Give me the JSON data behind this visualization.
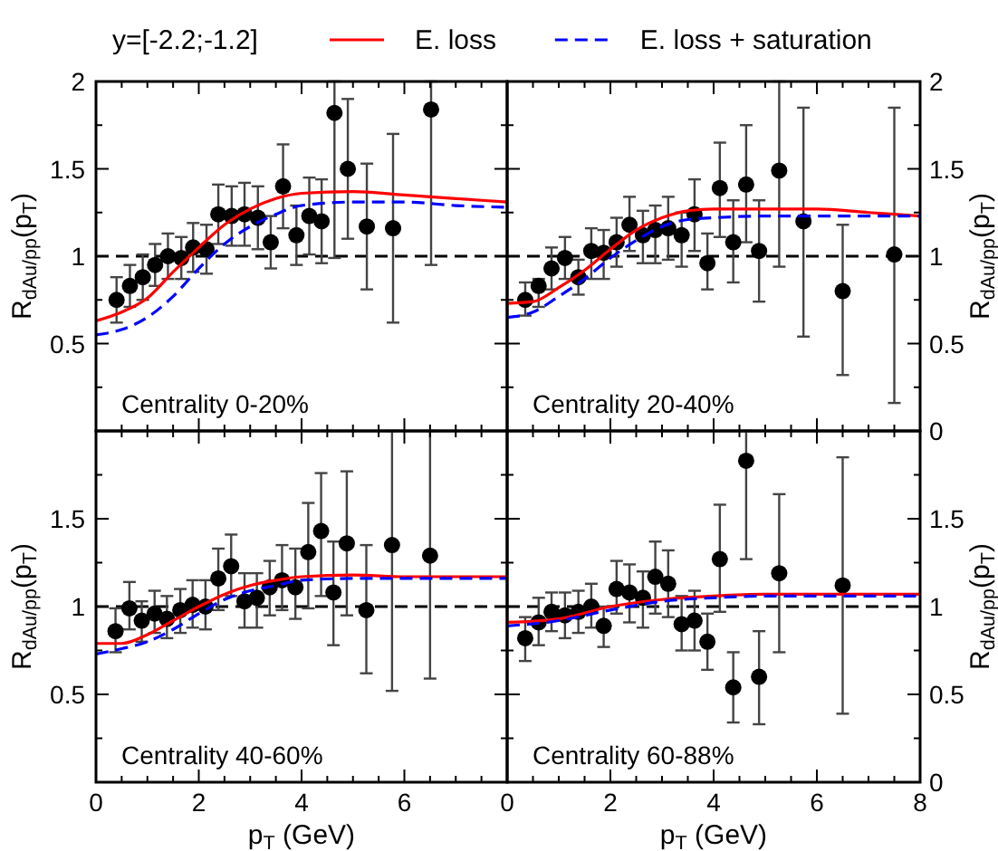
{
  "chart_data": [
    {
      "type": "scatter",
      "legend": "top",
      "legend_title": "y=[-2.2;-1.2]",
      "ylabel": "R$_{dAu/pp}$(p$_{T}$)",
      "tick_labels": "y",
      "xlim": [
        0,
        8
      ],
      "xticks": [
        0,
        2,
        4,
        6,
        8
      ],
      "ylim": [
        0,
        2
      ],
      "yticks": [
        0.5,
        1,
        1.5,
        2
      ],
      "annotations": [
        "Centrality 0-20%"
      ],
      "ref_lines": [
        {
          "axis": "y",
          "value": 1,
          "label": null,
          "color": "#000000",
          "line_style": "dashed"
        }
      ],
      "series": [
        {
          "type": "scatter",
          "color": "#000000",
          "marker": "circle",
          "x": [
            0.4,
            0.66,
            0.91,
            1.15,
            1.4,
            1.66,
            1.89,
            2.15,
            2.38,
            2.64,
            2.89,
            3.15,
            3.4,
            3.64,
            3.9,
            4.15,
            4.39,
            4.64,
            4.9,
            5.27,
            5.78,
            6.52
          ],
          "values": [
            0.75,
            0.83,
            0.88,
            0.95,
            1.0,
            0.99,
            1.05,
            1.04,
            1.24,
            1.23,
            1.24,
            1.22,
            1.08,
            1.4,
            1.12,
            1.23,
            1.2,
            1.82,
            1.5,
            1.17,
            1.16,
            1.84
          ],
          "errors": [
            [
              0.62,
              0.88
            ],
            [
              0.71,
              0.95
            ],
            [
              0.75,
              1.01
            ],
            [
              0.83,
              1.07
            ],
            [
              0.87,
              1.13
            ],
            [
              0.87,
              1.11
            ],
            [
              0.91,
              1.19
            ],
            [
              0.9,
              1.18
            ],
            [
              1.07,
              1.41
            ],
            [
              1.06,
              1.4
            ],
            [
              1.06,
              1.42
            ],
            [
              1.04,
              1.4
            ],
            [
              0.93,
              1.23
            ],
            [
              1.16,
              1.64
            ],
            [
              0.95,
              1.29
            ],
            [
              1.01,
              1.45
            ],
            [
              0.96,
              1.44
            ],
            [
              0.99,
              2
            ],
            [
              1.1,
              1.9
            ],
            [
              0.81,
              1.53
            ],
            [
              0.62,
              1.7
            ],
            [
              0.95,
              2
            ]
          ]
        },
        {
          "type": "line",
          "name": "E. loss",
          "color": "#ff0000",
          "line_style": "solid",
          "x": [
            0,
            0.5,
            1,
            1.5,
            2,
            2.5,
            3,
            3.5,
            4,
            5,
            6,
            7,
            8
          ],
          "values": [
            0.63,
            0.68,
            0.76,
            0.91,
            1.05,
            1.18,
            1.27,
            1.33,
            1.36,
            1.37,
            1.35,
            1.33,
            1.31
          ]
        },
        {
          "type": "line",
          "name": "E. loss + saturation",
          "color": "#0000ff",
          "line_style": "dashed",
          "x": [
            0,
            0.5,
            1,
            1.5,
            2,
            2.5,
            3,
            3.5,
            4,
            5,
            6,
            7,
            8
          ],
          "values": [
            0.55,
            0.58,
            0.65,
            0.77,
            0.93,
            1.07,
            1.17,
            1.24,
            1.29,
            1.31,
            1.31,
            1.29,
            1.28
          ]
        }
      ]
    },
    {
      "type": "scatter",
      "y2label": "R$_{dAu/pp}$(p$_{T}$)",
      "tick_labels": "y",
      "xlim": [
        0,
        8
      ],
      "xticks": [
        0,
        2,
        4,
        6,
        8
      ],
      "y2lim": [
        0,
        2
      ],
      "y2ticks": [
        0,
        0.5,
        1,
        1.5,
        2
      ],
      "annotations": [
        "Centrality 20-40%"
      ],
      "ref_lines": [
        {
          "axis": "y2",
          "value": 1,
          "label": null,
          "color": "#000000",
          "line_style": "dashed"
        }
      ],
      "series": [
        {
          "type": "scatter",
          "axis": "y2",
          "color": "#000000",
          "marker": "circle",
          "x": [
            0.35,
            0.61,
            0.86,
            1.12,
            1.38,
            1.63,
            1.87,
            2.12,
            2.37,
            2.63,
            2.87,
            3.12,
            3.38,
            3.63,
            3.88,
            4.12,
            4.38,
            4.63,
            4.88,
            5.27,
            5.74,
            6.5,
            7.5
          ],
          "values": [
            0.75,
            0.83,
            0.93,
            0.99,
            0.88,
            1.03,
            1.02,
            1.08,
            1.18,
            1.12,
            1.15,
            1.16,
            1.12,
            1.24,
            0.96,
            1.39,
            1.08,
            1.41,
            1.03,
            1.49,
            1.2,
            0.8,
            1.01
          ],
          "errors": [
            [
              0.66,
              0.85
            ],
            [
              0.71,
              0.87
            ],
            [
              0.81,
              1.05
            ],
            [
              0.87,
              1.11
            ],
            [
              0.78,
              0.98
            ],
            [
              0.87,
              1.16
            ],
            [
              0.87,
              1.15
            ],
            [
              0.94,
              1.22
            ],
            [
              1.03,
              1.34
            ],
            [
              0.96,
              1.26
            ],
            [
              0.96,
              1.29
            ],
            [
              0.98,
              1.34
            ],
            [
              0.94,
              1.25
            ],
            [
              1.03,
              1.44
            ],
            [
              0.81,
              1.13
            ],
            [
              1.11,
              1.65
            ],
            [
              0.85,
              1.32
            ],
            [
              1.08,
              1.75
            ],
            [
              0.74,
              1.32
            ],
            [
              0.94,
              2
            ],
            [
              0.54,
              1.85
            ],
            [
              0.32,
              1.18
            ],
            [
              0.16,
              1.85
            ]
          ]
        },
        {
          "type": "line",
          "axis": "y2",
          "color": "#ff0000",
          "line_style": "solid",
          "x": [
            0,
            0.5,
            1,
            1.5,
            2,
            2.5,
            3,
            3.5,
            4,
            5,
            6,
            7,
            8
          ],
          "values": [
            0.73,
            0.74,
            0.82,
            0.92,
            1.04,
            1.15,
            1.22,
            1.26,
            1.27,
            1.27,
            1.27,
            1.25,
            1.23
          ]
        },
        {
          "type": "line",
          "axis": "y2",
          "color": "#0000ff",
          "line_style": "dashed",
          "x": [
            0,
            0.5,
            1,
            1.5,
            2,
            2.5,
            3,
            3.5,
            4,
            5,
            6,
            7,
            8
          ],
          "values": [
            0.65,
            0.68,
            0.77,
            0.87,
            0.99,
            1.09,
            1.17,
            1.21,
            1.22,
            1.23,
            1.23,
            1.23,
            1.23
          ]
        }
      ]
    },
    {
      "type": "scatter",
      "ylabel": "R$_{dAu/pp}$(p$_{T}$)",
      "xlabel": "p$_{T}$ (GeV)",
      "xlim": [
        0,
        8
      ],
      "xticks": [
        0,
        2,
        4,
        6
      ],
      "ylim": [
        0,
        2
      ],
      "yticks": [
        0.5,
        1,
        1.5
      ],
      "annotations": [
        "Centrality 40-60%"
      ],
      "ref_lines": [
        {
          "axis": "y",
          "value": 1,
          "label": null,
          "color": "#000000",
          "line_style": "dashed"
        }
      ],
      "series": [
        {
          "type": "scatter",
          "color": "#000000",
          "marker": "circle",
          "x": [
            0.38,
            0.65,
            0.89,
            1.14,
            1.38,
            1.64,
            1.88,
            2.13,
            2.38,
            2.63,
            2.89,
            3.13,
            3.38,
            3.62,
            3.88,
            4.13,
            4.38,
            4.62,
            4.88,
            5.26,
            5.76,
            6.5
          ],
          "values": [
            0.86,
            0.99,
            0.92,
            0.96,
            0.93,
            0.98,
            1.01,
            1.0,
            1.16,
            1.23,
            1.03,
            1.05,
            1.11,
            1.15,
            1.11,
            1.31,
            1.43,
            1.08,
            1.36,
            0.98,
            1.35,
            1.29
          ],
          "errors": [
            [
              0.74,
              0.99
            ],
            [
              0.87,
              1.14
            ],
            [
              0.8,
              1.03
            ],
            [
              0.85,
              1.09
            ],
            [
              0.82,
              1.06
            ],
            [
              0.85,
              1.1
            ],
            [
              0.88,
              1.15
            ],
            [
              0.87,
              1.15
            ],
            [
              0.98,
              1.33
            ],
            [
              1.06,
              1.41
            ],
            [
              0.88,
              1.19
            ],
            [
              0.88,
              1.19
            ],
            [
              0.95,
              1.26
            ],
            [
              0.98,
              1.35
            ],
            [
              0.93,
              1.33
            ],
            [
              0.99,
              1.59
            ],
            [
              1.06,
              1.76
            ],
            [
              0.78,
              1.37
            ],
            [
              0.95,
              1.77
            ],
            [
              0.62,
              1.35
            ],
            [
              0.52,
              2
            ],
            [
              0.59,
              2
            ]
          ]
        },
        {
          "type": "line",
          "color": "#ff0000",
          "line_style": "solid",
          "x": [
            0,
            0.5,
            1,
            1.5,
            2,
            2.5,
            3,
            3.5,
            4,
            5,
            6,
            7,
            8
          ],
          "values": [
            0.79,
            0.79,
            0.84,
            0.92,
            1.0,
            1.07,
            1.12,
            1.15,
            1.17,
            1.18,
            1.17,
            1.17,
            1.17
          ]
        },
        {
          "type": "line",
          "color": "#0000ff",
          "line_style": "dashed",
          "x": [
            0,
            0.5,
            1,
            1.5,
            2,
            2.5,
            3,
            3.5,
            4,
            5,
            6,
            7,
            8
          ],
          "values": [
            0.73,
            0.76,
            0.8,
            0.87,
            0.96,
            1.04,
            1.09,
            1.12,
            1.15,
            1.16,
            1.16,
            1.16,
            1.16
          ]
        }
      ]
    },
    {
      "type": "scatter",
      "y2label": "R$_{dAu/pp}$(p$_{T}$)",
      "xlabel": "p$_{T}$ (GeV)",
      "xlim": [
        0,
        8
      ],
      "xticks": [
        0,
        2,
        4,
        6,
        8
      ],
      "y2lim": [
        0,
        2
      ],
      "y2ticks": [
        0,
        0.5,
        1,
        1.5
      ],
      "annotations": [
        "Centrality 60-88%"
      ],
      "ref_lines": [
        {
          "axis": "y2",
          "value": 1,
          "label": null,
          "color": "#000000",
          "line_style": "dashed"
        }
      ],
      "series": [
        {
          "type": "scatter",
          "axis": "y2",
          "color": "#000000",
          "marker": "circle",
          "x": [
            0.35,
            0.61,
            0.86,
            1.12,
            1.38,
            1.63,
            1.87,
            2.12,
            2.37,
            2.63,
            2.87,
            3.12,
            3.38,
            3.63,
            3.88,
            4.12,
            4.38,
            4.63,
            4.88,
            5.27,
            6.5
          ],
          "values": [
            0.82,
            0.91,
            0.97,
            0.95,
            0.97,
            1.0,
            0.89,
            1.1,
            1.08,
            1.05,
            1.17,
            1.13,
            0.9,
            0.92,
            0.8,
            1.27,
            0.54,
            1.83,
            0.6,
            1.19,
            1.12
          ],
          "errors": [
            [
              0.69,
              0.94
            ],
            [
              0.78,
              1.05
            ],
            [
              0.86,
              1.08
            ],
            [
              0.82,
              1.08
            ],
            [
              0.85,
              1.09
            ],
            [
              0.88,
              1.13
            ],
            [
              0.77,
              1.0
            ],
            [
              0.96,
              1.26
            ],
            [
              0.91,
              1.24
            ],
            [
              0.88,
              1.2
            ],
            [
              0.96,
              1.37
            ],
            [
              0.94,
              1.32
            ],
            [
              0.75,
              1.06
            ],
            [
              0.75,
              1.09
            ],
            [
              0.64,
              0.96
            ],
            [
              0.97,
              1.58
            ],
            [
              0.34,
              0.74
            ],
            [
              1.27,
              2
            ],
            [
              0.33,
              0.86
            ],
            [
              0.74,
              1.64
            ],
            [
              0.39,
              1.85
            ]
          ]
        },
        {
          "type": "line",
          "axis": "y2",
          "color": "#ff0000",
          "line_style": "solid",
          "x": [
            0,
            1,
            2,
            3,
            4,
            5,
            6,
            8
          ],
          "values": [
            0.91,
            0.93,
            1.0,
            1.04,
            1.06,
            1.07,
            1.07,
            1.07
          ]
        },
        {
          "type": "line",
          "axis": "y2",
          "color": "#0000ff",
          "line_style": "dashed",
          "x": [
            0,
            1,
            2,
            3,
            4,
            5,
            6,
            8
          ],
          "values": [
            0.89,
            0.92,
            0.98,
            1.03,
            1.05,
            1.06,
            1.06,
            1.06
          ]
        }
      ]
    }
  ]
}
